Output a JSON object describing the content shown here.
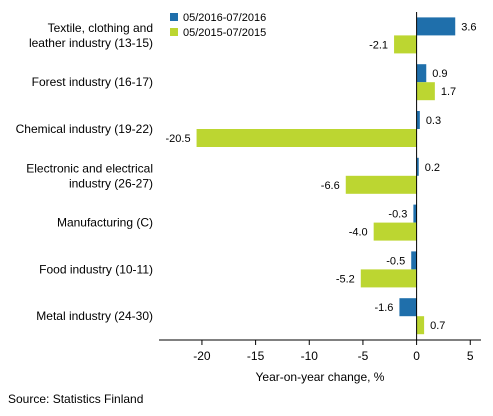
{
  "chart_data": {
    "type": "bar",
    "orientation": "horizontal",
    "categories": [
      [
        "Textile, clothing and",
        "leather industry (13-15)"
      ],
      [
        "Forest industry (16-17)"
      ],
      [
        "Chemical industry (19-22)"
      ],
      [
        "Electronic and electrical",
        "industry (26-27)"
      ],
      [
        "Manufacturing (C)"
      ],
      [
        "Food industry (10-11)"
      ],
      [
        "Metal industry (24-30)"
      ]
    ],
    "series": [
      {
        "name": "05/2016-07/2016",
        "color": "#1f6fab",
        "values": [
          3.6,
          0.9,
          0.3,
          0.2,
          -0.3,
          -0.5,
          -1.6
        ],
        "labels": [
          "3.6",
          "0.9",
          "0.3",
          "0.2",
          "-0.3",
          "-0.5",
          "-1.6"
        ]
      },
      {
        "name": "05/2015-07/2015",
        "color": "#bcd631",
        "values": [
          -2.1,
          1.7,
          -20.5,
          -6.6,
          -4.0,
          -5.2,
          0.7
        ],
        "labels": [
          "-2.1",
          "1.7",
          "-20.5",
          "-6.6",
          "-4.0",
          "-5.2",
          "0.7"
        ]
      }
    ],
    "xlim": [
      -24,
      6
    ],
    "xticks": [
      -20,
      -15,
      -10,
      -5,
      0,
      5
    ],
    "xtick_labels": [
      "-20",
      "-15",
      "-10",
      "-5",
      "0",
      "5"
    ],
    "xlabel": "Year-on-year change, %",
    "legend_position": "top",
    "grid": false,
    "source": "Source: Statistics Finland"
  }
}
